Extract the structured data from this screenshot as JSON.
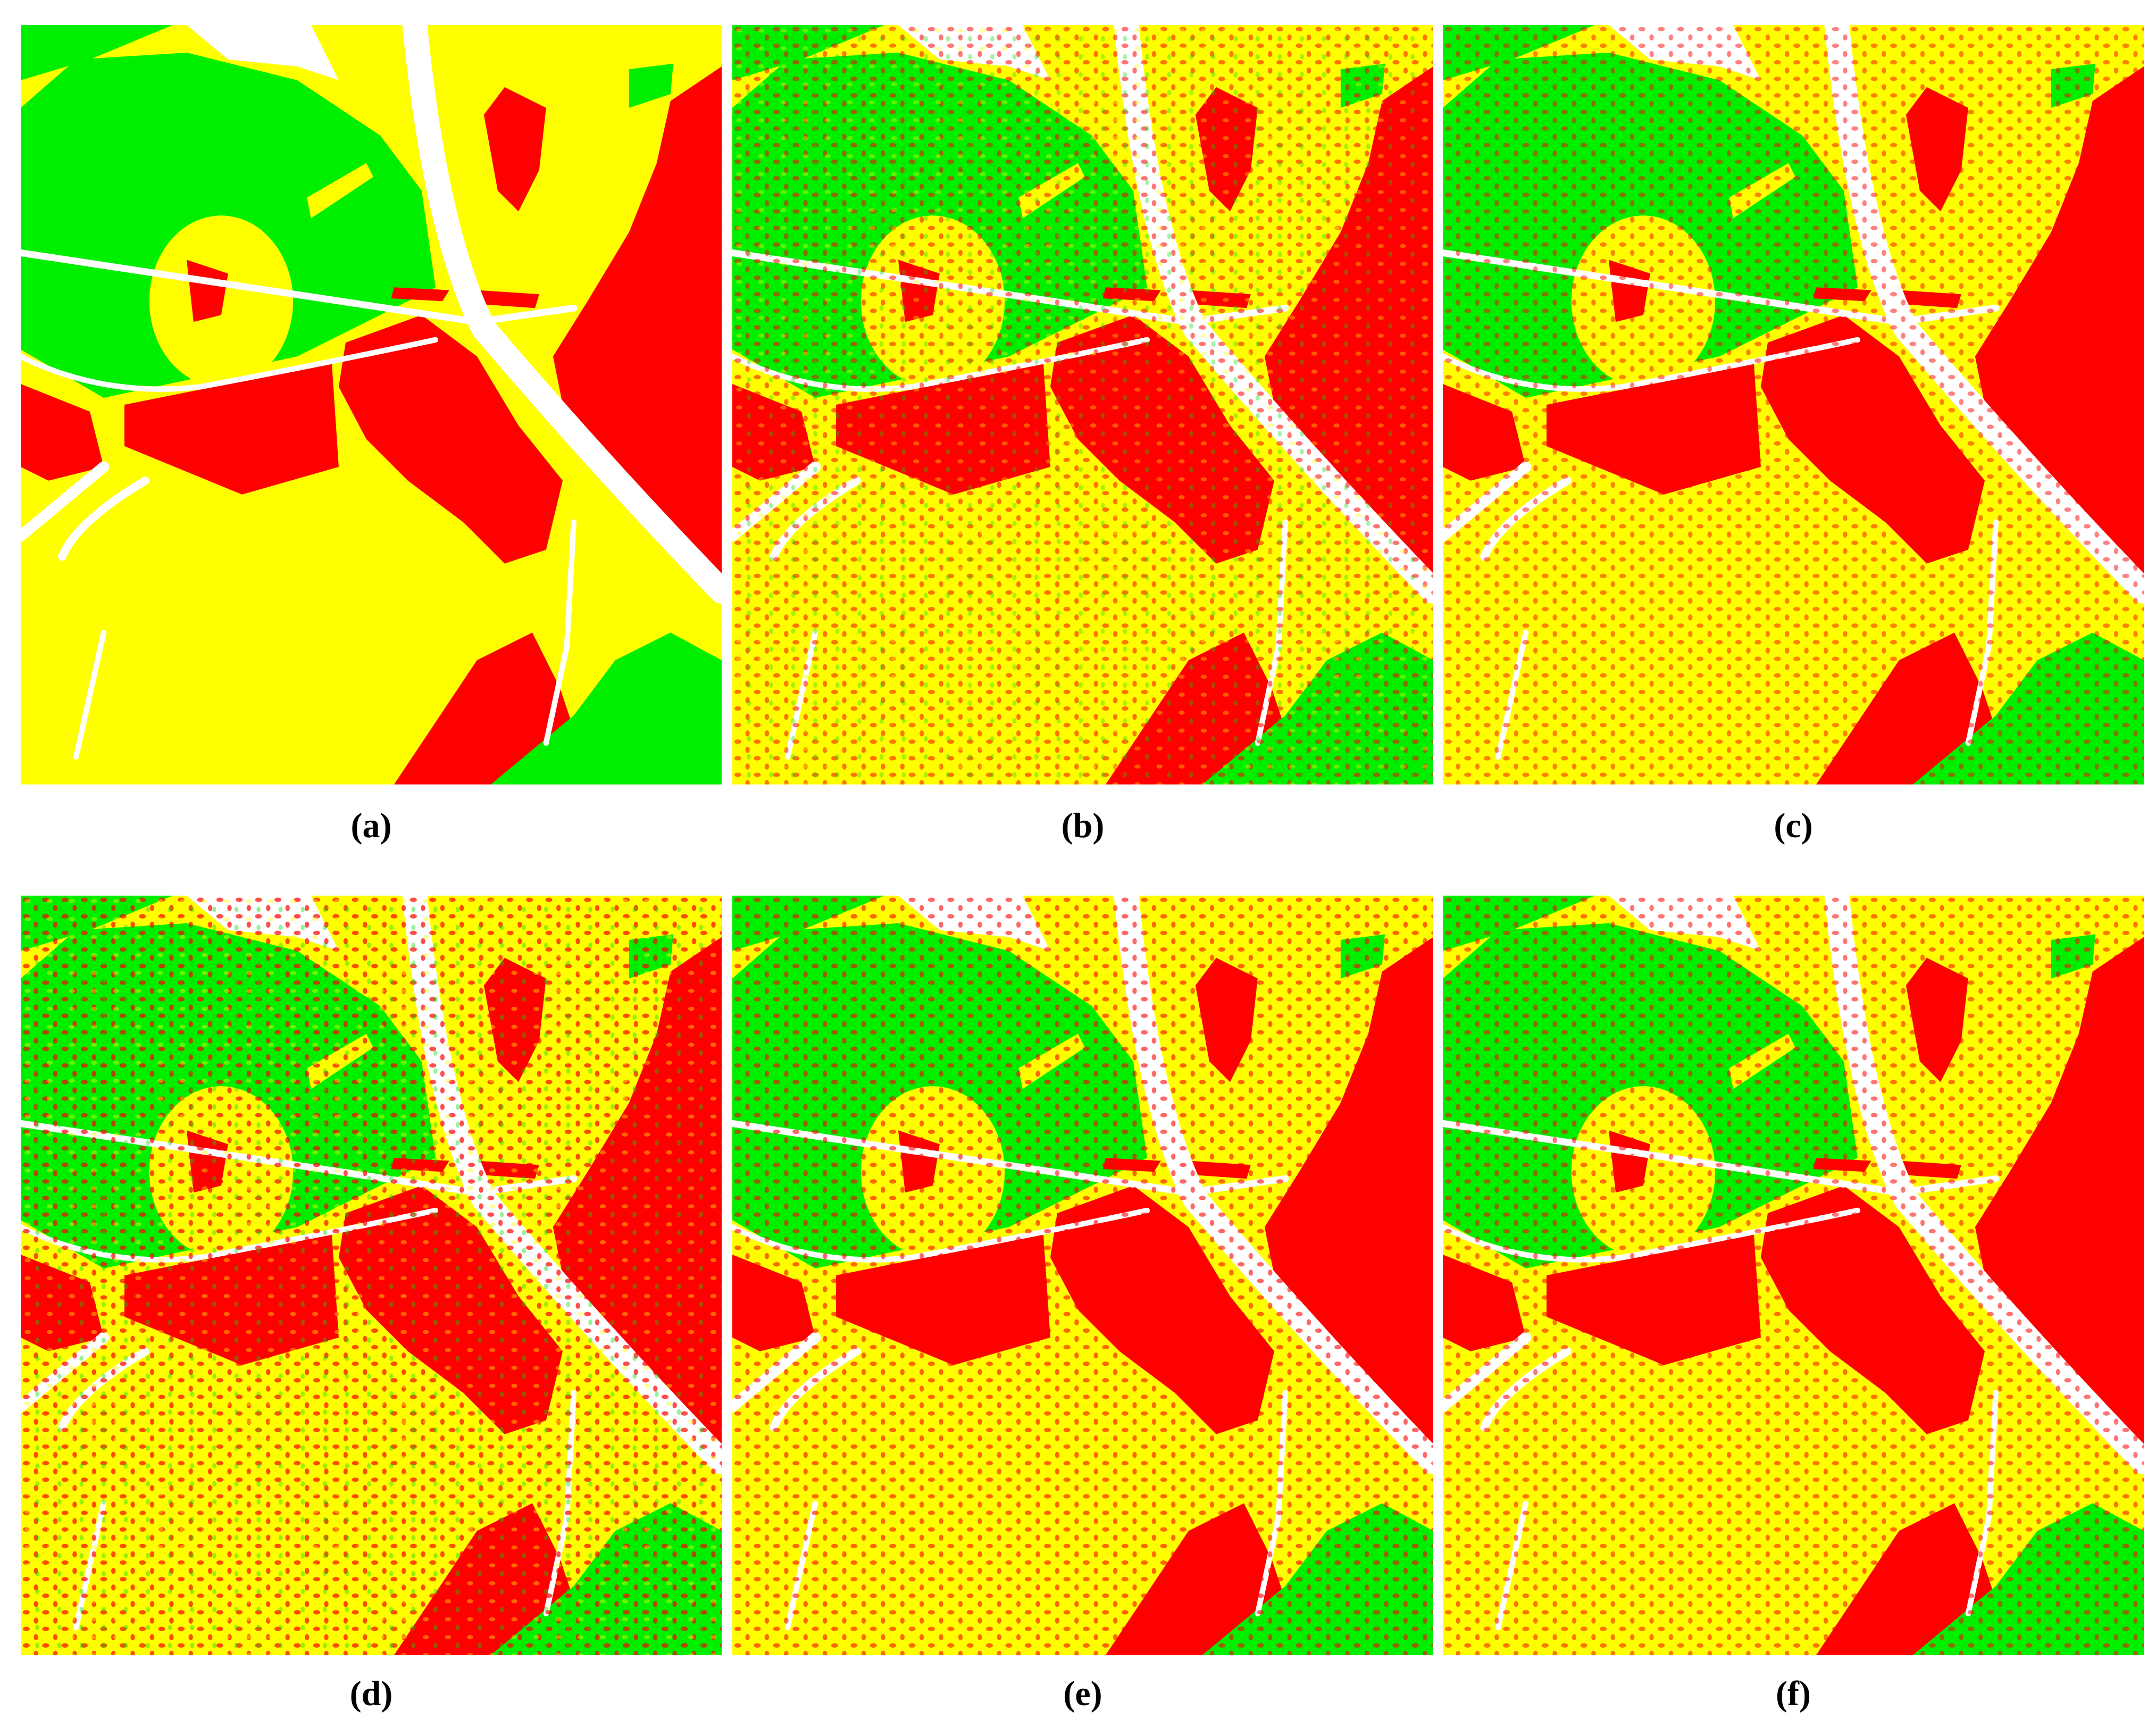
{
  "figure": {
    "captions": [
      "(a)",
      "(b)",
      "(c)",
      "(d)",
      "(e)",
      "(f)"
    ]
  }
}
